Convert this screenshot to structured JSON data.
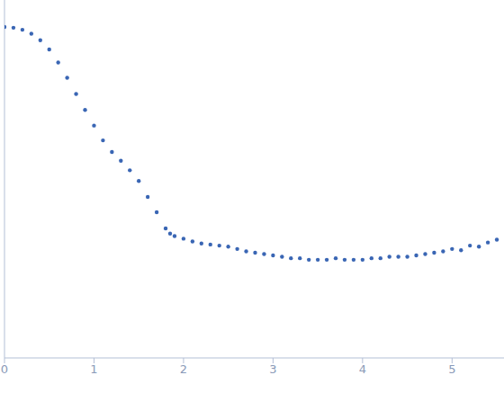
{
  "chart_data": {
    "type": "scatter",
    "log": "y",
    "grid": false,
    "tick_labels": "x",
    "color": "#3a66b4",
    "marker": "circle",
    "xlim": [
      0,
      5.58
    ],
    "xticks": [
      0,
      1,
      2,
      3,
      4,
      5
    ],
    "ylim": [
      0.0002,
      2
    ],
    "yticks": [
      0.001,
      0.01,
      0.1,
      1
    ],
    "x": [
      0,
      0.1,
      0.2,
      0.3,
      0.4,
      0.5,
      0.6,
      0.7,
      0.8,
      0.9,
      1.0,
      1.1,
      1.2,
      1.3,
      1.4,
      1.5,
      1.6,
      1.7,
      1.8,
      1.85,
      1.9,
      2.0,
      2.1,
      2.2,
      2.3,
      2.4,
      2.5,
      2.6,
      2.7,
      2.8,
      2.9,
      3.0,
      3.1,
      3.2,
      3.3,
      3.4,
      3.5,
      3.6,
      3.7,
      3.8,
      3.9,
      4.0,
      4.1,
      4.2,
      4.3,
      4.4,
      4.5,
      4.6,
      4.7,
      4.8,
      4.9,
      5.0,
      5.1,
      5.2,
      5.3,
      5.4,
      5.5
    ],
    "values": [
      1.0,
      0.98,
      0.93,
      0.84,
      0.71,
      0.56,
      0.4,
      0.27,
      0.178,
      0.118,
      0.079,
      0.054,
      0.04,
      0.032,
      0.025,
      0.019,
      0.0126,
      0.0085,
      0.0056,
      0.0049,
      0.0046,
      0.0043,
      0.004,
      0.0038,
      0.0037,
      0.0036,
      0.0035,
      0.0033,
      0.0031,
      0.003,
      0.0029,
      0.0028,
      0.0027,
      0.0026,
      0.0026,
      0.0025,
      0.0025,
      0.0025,
      0.0026,
      0.0025,
      0.0025,
      0.0025,
      0.0026,
      0.0026,
      0.0027,
      0.0027,
      0.0027,
      0.0028,
      0.0029,
      0.003,
      0.0031,
      0.0033,
      0.0032,
      0.0036,
      0.0035,
      0.0039,
      0.0042
    ]
  }
}
